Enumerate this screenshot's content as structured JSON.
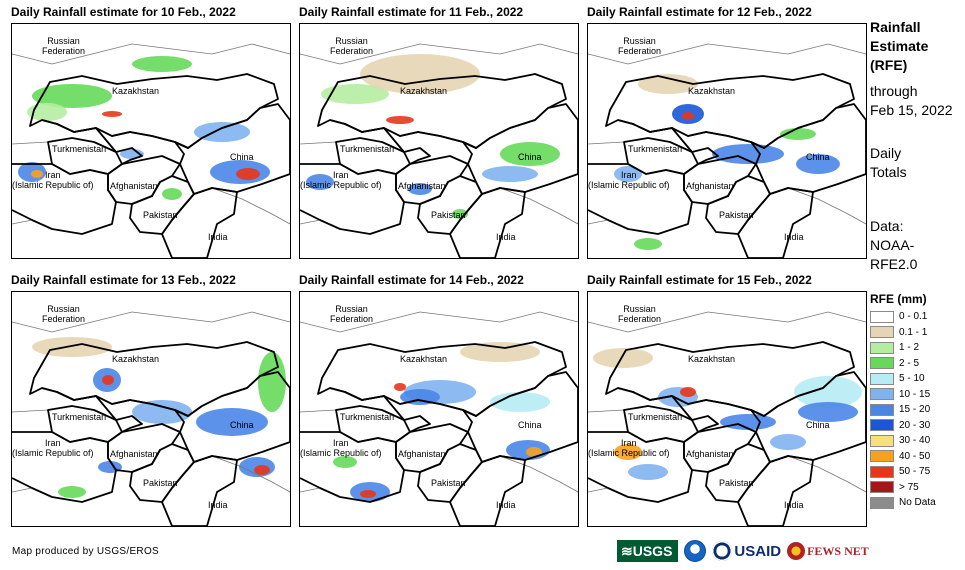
{
  "panels": [
    {
      "title": "Daily Rainfall estimate for 10 Feb., 2022"
    },
    {
      "title": "Daily Rainfall estimate for 11 Feb., 2022"
    },
    {
      "title": "Daily Rainfall estimate for 12 Feb., 2022"
    },
    {
      "title": "Daily Rainfall estimate for 13 Feb., 2022"
    },
    {
      "title": "Daily Rainfall estimate for 14 Feb., 2022"
    },
    {
      "title": "Daily Rainfall estimate for 15 Feb., 2022"
    }
  ],
  "country_labels": {
    "russia_line1": "Russian",
    "russia_line2": "Federation",
    "kazakhstan": "Kazakhstan",
    "turkmenistan": "Turkmenistan",
    "iran_line1": "Iran",
    "iran_line2": "(Islamic Republic of)",
    "afghanistan": "Afghanistan",
    "pakistan": "Pakistan",
    "china": "China",
    "india": "India"
  },
  "sidebar": {
    "title_lines": [
      "Rainfall",
      "Estimate",
      "(RFE)"
    ],
    "through_line1": "through",
    "through_line2": "Feb 15, 2022",
    "daily_line1": "Daily",
    "daily_line2": "Totals",
    "data_line1": "Data:",
    "data_line2": "NOAA-",
    "data_line3": "RFE2.0"
  },
  "legend": {
    "title": "RFE (mm)",
    "items": [
      {
        "label": "0 - 0.1",
        "color": "#ffffff"
      },
      {
        "label": "0.1 - 1",
        "color": "#e6d5b4"
      },
      {
        "label": "1 - 2",
        "color": "#b5eda0"
      },
      {
        "label": "2 - 5",
        "color": "#66d95a"
      },
      {
        "label": "5 - 10",
        "color": "#b6ecf5"
      },
      {
        "label": "10 - 15",
        "color": "#7fb3f0"
      },
      {
        "label": "15 - 20",
        "color": "#4a86e8"
      },
      {
        "label": "20 - 30",
        "color": "#1a56d6"
      },
      {
        "label": "30 - 40",
        "color": "#f7e07a"
      },
      {
        "label": "40 - 50",
        "color": "#f7a21e"
      },
      {
        "label": "50 - 75",
        "color": "#e8361a"
      },
      {
        "label": "> 75",
        "color": "#a31717"
      },
      {
        "label": "No Data",
        "color": "#8c8c8c"
      }
    ]
  },
  "credit": "Map produced by USGS/EROS",
  "logos": {
    "usgs": "≋USGS",
    "usaid": "USAID",
    "fews": "FEWS NET"
  }
}
